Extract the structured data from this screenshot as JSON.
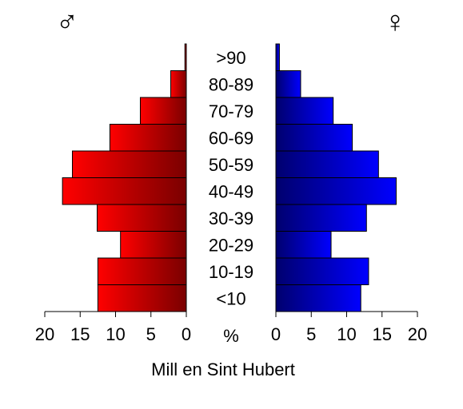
{
  "chart_data": {
    "type": "bar",
    "orientation": "horizontal",
    "title": "Mill en Sint Hubert",
    "categories": [
      "<10",
      "10-19",
      "20-29",
      "30-39",
      "40-49",
      "50-59",
      "60-69",
      "70-79",
      "80-89",
      ">90"
    ],
    "series": [
      {
        "name": "♂",
        "side": "left",
        "color": "#ff0000",
        "values": [
          12.5,
          12.5,
          9.3,
          12.6,
          17.5,
          16.1,
          10.8,
          6.5,
          2.2,
          0.2
        ]
      },
      {
        "name": "♀",
        "side": "right",
        "color": "#0000ff",
        "values": [
          12.0,
          13.1,
          7.8,
          12.8,
          17.0,
          14.5,
          10.8,
          8.1,
          3.5,
          0.5
        ]
      }
    ],
    "xlim": [
      0,
      20
    ],
    "x_ticks": [
      0,
      5,
      10,
      15,
      20
    ],
    "x_tick_labels_left": [
      "20",
      "15",
      "10",
      "5",
      "0"
    ],
    "x_tick_labels_right": [
      "0",
      "5",
      "10",
      "15",
      "20"
    ],
    "xlabel": "%",
    "grid": false
  }
}
